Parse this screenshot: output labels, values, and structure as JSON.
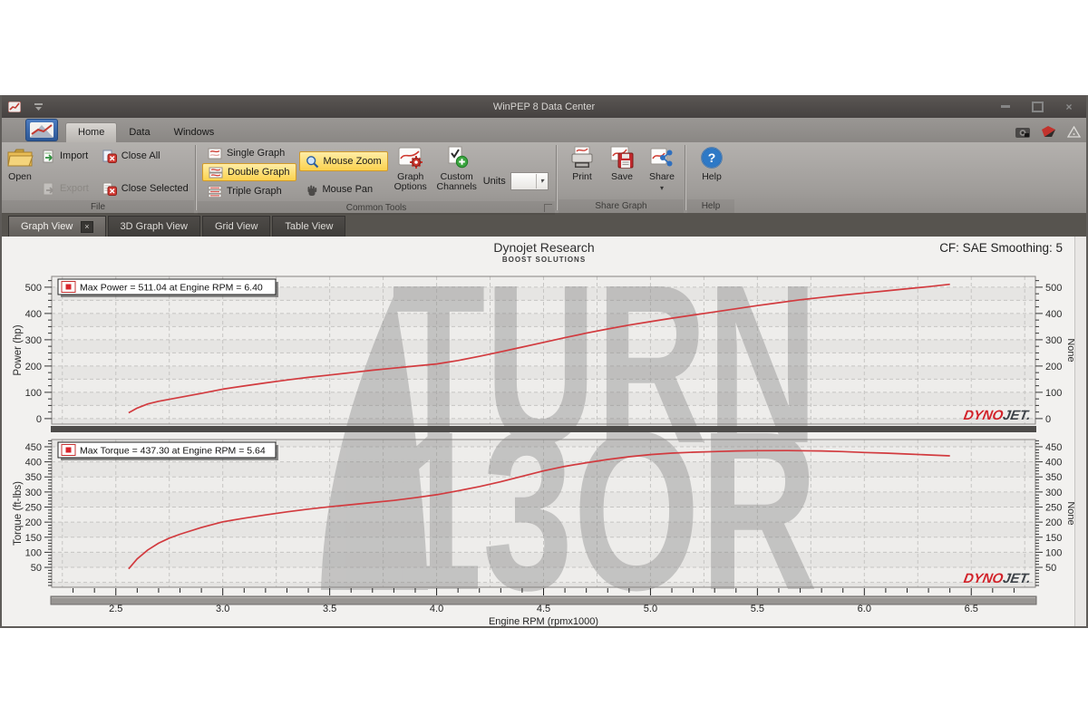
{
  "window": {
    "title": "WinPEP 8 Data Center"
  },
  "glyphs": {
    "close": "×",
    "dropdown": "▾",
    "question": "?"
  },
  "ribbon": {
    "tab_home": "Home",
    "tab_data": "Data",
    "tab_windows": "Windows",
    "open": "Open",
    "import": "Import",
    "export": "Export",
    "close_all": "Close All",
    "close_selected": "Close Selected",
    "single_graph": "Single Graph",
    "double_graph": "Double Graph",
    "triple_graph": "Triple Graph",
    "mouse_zoom": "Mouse Zoom",
    "mouse_pan": "Mouse Pan",
    "graph_options": "Graph Options",
    "custom_channels": "Custom Channels",
    "units": "Units",
    "print": "Print",
    "save": "Save",
    "share": "Share",
    "help": "Help",
    "group_file": "File",
    "group_common": "Common Tools",
    "group_share": "Share Graph",
    "group_help": "Help"
  },
  "doc_tabs": [
    {
      "label": "Graph View",
      "active": true
    },
    {
      "label": "3D Graph View",
      "active": false
    },
    {
      "label": "Grid View",
      "active": false
    },
    {
      "label": "Table View",
      "active": false
    }
  ],
  "chart_header": {
    "title": "Dynojet Research",
    "subtitle": "BOOST SOLUTIONS",
    "cf": "CF: SAE Smoothing: 5"
  },
  "watermark": {
    "line1": "TURN",
    "line2": "13OR"
  },
  "branding": {
    "dyno": "DYNO",
    "jet": "JET."
  },
  "xaxis": {
    "label": "Engine RPM (rpmx1000)",
    "ticks": [
      2.5,
      3.0,
      3.5,
      4.0,
      4.5,
      5.0,
      5.5,
      6.0,
      6.5
    ],
    "minor": 0.1,
    "grid_step": 0.25,
    "xlim": [
      2.2,
      6.8
    ]
  },
  "chart_data": [
    {
      "type": "line",
      "name": "power",
      "legend": "Max Power = 511.04 at Engine RPM = 6.40",
      "max_value": 511.04,
      "max_rpm": 6.4,
      "ylabel": "Power (hp)",
      "y2label": "None",
      "yticks": [
        0,
        100,
        200,
        300,
        400,
        500
      ],
      "yminor": 25,
      "band_step": 50,
      "ylim": [
        -21,
        541
      ],
      "series": [
        {
          "name": "Power",
          "color": "#d23b3f",
          "points": [
            [
              2.56,
              22
            ],
            [
              2.6,
              40
            ],
            [
              2.65,
              56
            ],
            [
              2.7,
              66
            ],
            [
              2.8,
              81
            ],
            [
              2.9,
              96
            ],
            [
              3.0,
              112
            ],
            [
              3.1,
              124
            ],
            [
              3.2,
              136
            ],
            [
              3.3,
              147
            ],
            [
              3.4,
              157
            ],
            [
              3.5,
              166
            ],
            [
              3.6,
              175
            ],
            [
              3.7,
              184
            ],
            [
              3.8,
              192
            ],
            [
              3.9,
              200
            ],
            [
              4.0,
              208
            ],
            [
              4.1,
              221
            ],
            [
              4.2,
              237
            ],
            [
              4.3,
              254
            ],
            [
              4.4,
              272
            ],
            [
              4.5,
              290
            ],
            [
              4.6,
              308
            ],
            [
              4.7,
              325
            ],
            [
              4.8,
              341
            ],
            [
              4.9,
              356
            ],
            [
              5.0,
              369
            ],
            [
              5.1,
              382
            ],
            [
              5.2,
              394
            ],
            [
              5.3,
              406
            ],
            [
              5.4,
              418
            ],
            [
              5.5,
              430
            ],
            [
              5.6,
              441
            ],
            [
              5.7,
              452
            ],
            [
              5.8,
              461
            ],
            [
              5.9,
              470
            ],
            [
              6.0,
              478
            ],
            [
              6.1,
              486
            ],
            [
              6.2,
              494
            ],
            [
              6.3,
              502
            ],
            [
              6.4,
              511
            ]
          ]
        }
      ]
    },
    {
      "type": "line",
      "name": "torque",
      "legend": "Max Torque = 437.30 at Engine RPM = 5.64",
      "max_value": 437.3,
      "max_rpm": 5.64,
      "ylabel": "Torque (ft-lbs)",
      "y2label": "None",
      "yticks": [
        50,
        100,
        150,
        200,
        250,
        300,
        350,
        400,
        450
      ],
      "yminor": 10,
      "band_step": 50,
      "ylim": [
        -16,
        474
      ],
      "series": [
        {
          "name": "Torque",
          "color": "#d23b3f",
          "points": [
            [
              2.56,
              45
            ],
            [
              2.6,
              78
            ],
            [
              2.65,
              108
            ],
            [
              2.7,
              130
            ],
            [
              2.75,
              147
            ],
            [
              2.8,
              160
            ],
            [
              2.9,
              182
            ],
            [
              3.0,
              201
            ],
            [
              3.1,
              213
            ],
            [
              3.2,
              224
            ],
            [
              3.3,
              234
            ],
            [
              3.4,
              243
            ],
            [
              3.5,
              251
            ],
            [
              3.6,
              258
            ],
            [
              3.7,
              265
            ],
            [
              3.8,
              272
            ],
            [
              3.9,
              281
            ],
            [
              4.0,
              291
            ],
            [
              4.1,
              304
            ],
            [
              4.2,
              318
            ],
            [
              4.3,
              334
            ],
            [
              4.4,
              352
            ],
            [
              4.5,
              370
            ],
            [
              4.6,
              385
            ],
            [
              4.7,
              397
            ],
            [
              4.8,
              408
            ],
            [
              4.9,
              417
            ],
            [
              5.0,
              424
            ],
            [
              5.1,
              429
            ],
            [
              5.2,
              432
            ],
            [
              5.3,
              434
            ],
            [
              5.4,
              436
            ],
            [
              5.5,
              437
            ],
            [
              5.64,
              437.3
            ],
            [
              5.8,
              436
            ],
            [
              5.9,
              434
            ],
            [
              6.0,
              431
            ],
            [
              6.1,
              429
            ],
            [
              6.2,
              426
            ],
            [
              6.3,
              423
            ],
            [
              6.4,
              420
            ]
          ]
        }
      ]
    }
  ]
}
